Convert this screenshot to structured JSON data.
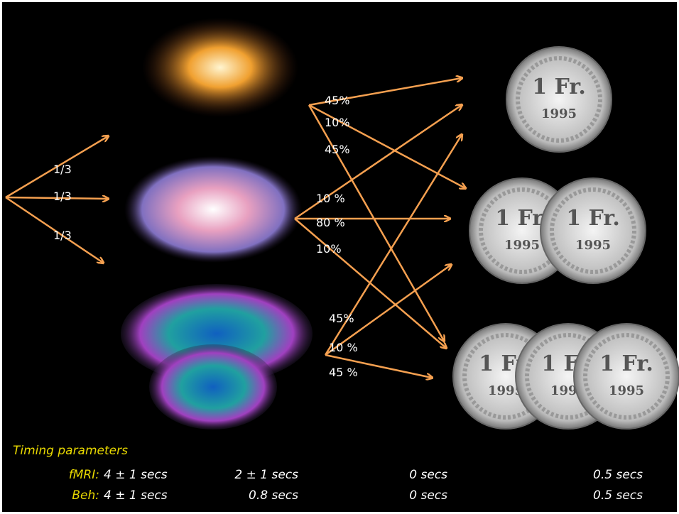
{
  "stimulus_probabilities": [
    "1/3",
    "1/3",
    "1/3"
  ],
  "outcome_probabilities": [
    [
      "45%",
      "10%",
      "45%"
    ],
    [
      "10 %",
      "80 %",
      "10%"
    ],
    [
      "45%",
      "10 %",
      "45 %"
    ]
  ],
  "coin": {
    "denomination": "1 Fr.",
    "year": "1995"
  },
  "timing": {
    "title": "Timing parameters",
    "rows": [
      {
        "label": "fMRI:",
        "cells": [
          "4 ± 1 secs",
          "2 ± 1 secs",
          "0 secs",
          "0.5 secs"
        ]
      },
      {
        "label": "Beh:",
        "cells": [
          "4 ± 1 secs",
          "0.8 secs",
          "0 secs",
          "0.5 secs"
        ]
      }
    ]
  }
}
